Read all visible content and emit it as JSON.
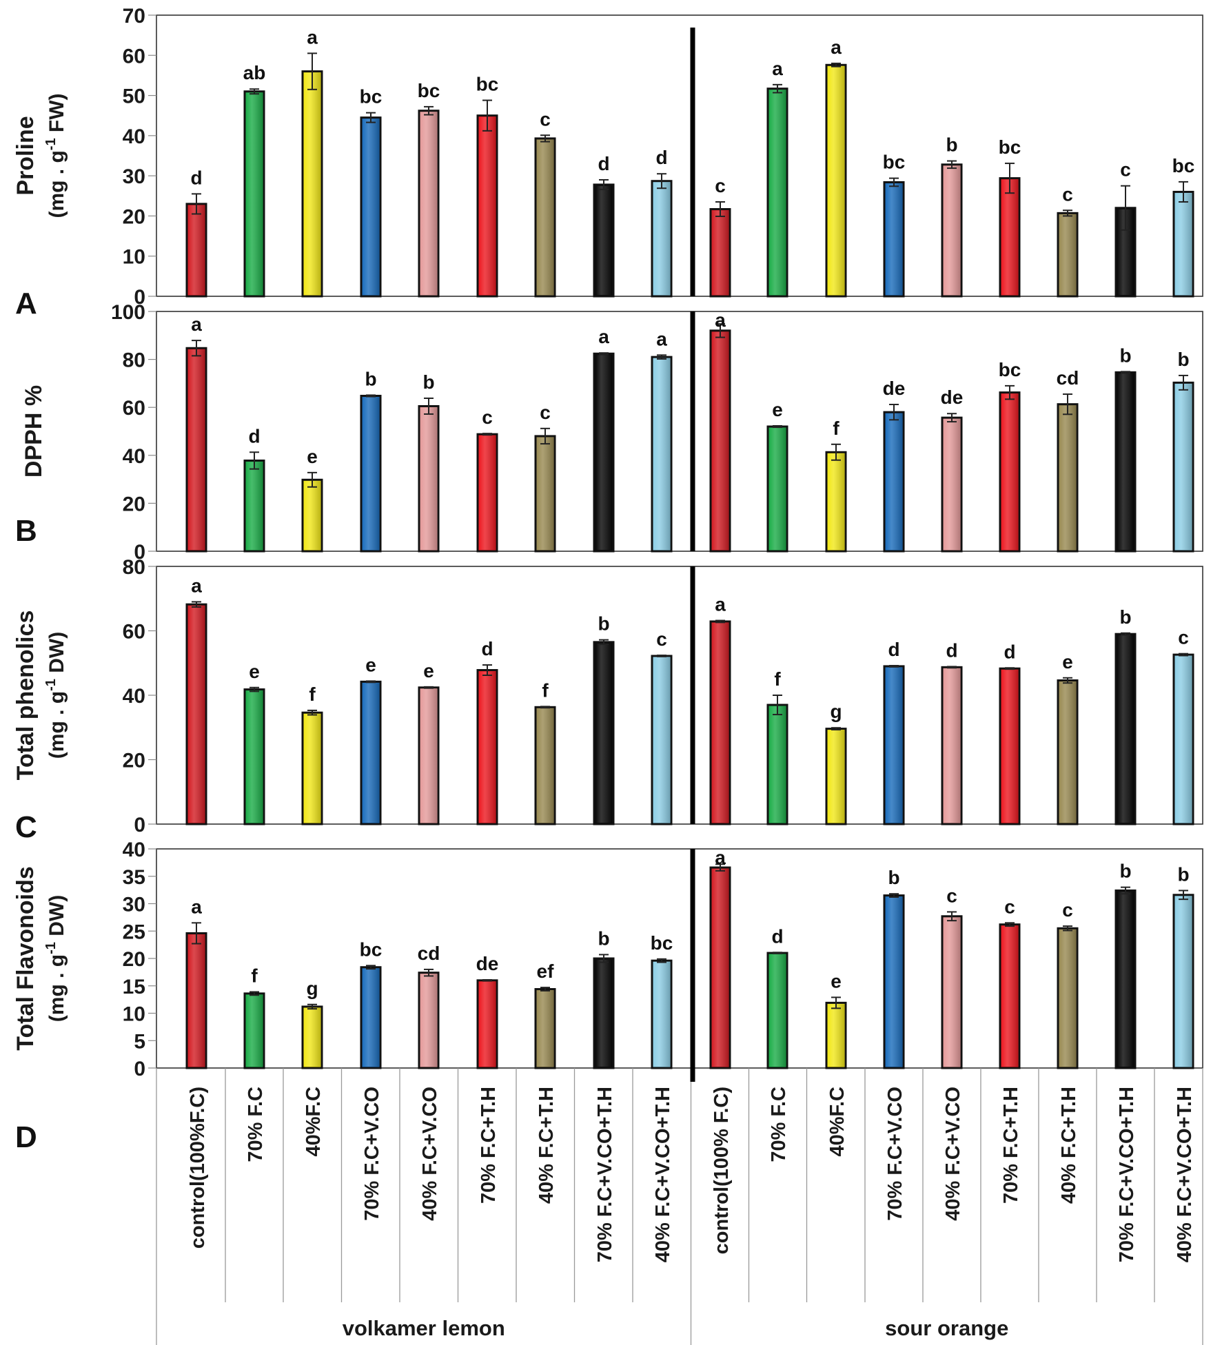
{
  "figure": {
    "groups": [
      "volkamer lemon",
      "sour orange"
    ],
    "categories": [
      "control(100%F.C)",
      "70% F.C",
      "40%F.C",
      "70% F.C+V.CO",
      "40% F.C+V.CO",
      "70% F.C+T.H",
      "40% F.C+T.H",
      "70% F.C+V.CO+T.H",
      "40% F.C+V.CO+T.H",
      "control(100% F.C)",
      "70% F.C",
      "40%F.C",
      "70% F.C+V.CO",
      "40% F.C+V.CO",
      "70% F.C+T.H",
      "40% F.C+T.H",
      "70% F.C+V.CO+T.H",
      "40% F.C+V.CO+T.H"
    ],
    "bar_colors": [
      "#d42027",
      "#1fae4b",
      "#f2e81c",
      "#1e6fbd",
      "#e59c9c",
      "#ed1c24",
      "#9b8c55",
      "#0a0a0a",
      "#8fcfe6"
    ]
  },
  "chart_data": [
    {
      "type": "bar",
      "panel_letter": "A",
      "ylabel_line1": "Proline",
      "ylabel_line2_prefix": "(mg . g",
      "ylabel_sup": "-1",
      "ylabel_line2_suffix": " FW)",
      "ylim": [
        0,
        70
      ],
      "yticks": [
        0,
        10,
        20,
        30,
        40,
        50,
        60,
        70
      ],
      "values": [
        23,
        51,
        56,
        44.5,
        46.2,
        45,
        39.3,
        27.8,
        28.7,
        21.7,
        51.7,
        57.6,
        28.4,
        32.8,
        29.4,
        20.7,
        22,
        26
      ],
      "errors": [
        2.5,
        0.6,
        4.5,
        1.2,
        1,
        3.8,
        0.8,
        1.2,
        1.8,
        1.8,
        1,
        0.4,
        1,
        0.9,
        3.7,
        0.7,
        5.5,
        2.5
      ],
      "letters": [
        "d",
        "ab",
        "a",
        "bc",
        "bc",
        "bc",
        "c",
        "d",
        "d",
        "c",
        "a",
        "a",
        "bc",
        "b",
        "bc",
        "c",
        "c",
        "bc"
      ]
    },
    {
      "type": "bar",
      "panel_letter": "B",
      "ylabel_line1": "DPPH %",
      "ylim": [
        0,
        100
      ],
      "yticks": [
        0,
        20,
        40,
        60,
        80,
        100
      ],
      "values": [
        84.7,
        37.8,
        29.8,
        64.8,
        60.5,
        48.8,
        48,
        82.4,
        81,
        92,
        52,
        41.3,
        58,
        55.7,
        66.2,
        61.3,
        74.6,
        70.3
      ],
      "errors": [
        3.2,
        3.5,
        3,
        0.3,
        3.3,
        0.3,
        3.2,
        0.3,
        0.8,
        2.8,
        0.3,
        3.3,
        3.2,
        1.7,
        2.8,
        4.2,
        0.3,
        3
      ],
      "letters": [
        "a",
        "d",
        "e",
        "b",
        "b",
        "c",
        "c",
        "a",
        "a",
        "a",
        "e",
        "f",
        "de",
        "de",
        "bc",
        "cd",
        "b",
        "b"
      ]
    },
    {
      "type": "bar",
      "panel_letter": "C",
      "ylabel_line1": "Total phenolics",
      "ylabel_line2_prefix": "(mg . g",
      "ylabel_sup": "-1",
      "ylabel_line2_suffix": " DW)",
      "ylim": [
        0,
        80
      ],
      "yticks": [
        0,
        20,
        40,
        60,
        80
      ],
      "values": [
        68.2,
        41.8,
        34.6,
        44.2,
        42.4,
        47.8,
        36.3,
        56.5,
        52.2,
        62.9,
        37,
        29.6,
        49,
        48.7,
        48.3,
        44.6,
        59,
        52.6
      ],
      "errors": [
        0.8,
        0.6,
        0.7,
        0.2,
        0.2,
        1.6,
        0.2,
        0.7,
        0.2,
        0.3,
        3,
        0.3,
        0.2,
        0.2,
        0.2,
        0.8,
        0.3,
        0.3
      ],
      "letters": [
        "a",
        "e",
        "f",
        "e",
        "e",
        "d",
        "f",
        "b",
        "c",
        "a",
        "f",
        "g",
        "d",
        "d",
        "d",
        "e",
        "b",
        "c"
      ]
    },
    {
      "type": "bar",
      "panel_letter": "D",
      "ylabel_line1": "Total Flavonoids",
      "ylabel_line2_prefix": "(mg . g",
      "ylabel_sup": "-1",
      "ylabel_line2_suffix": " DW)",
      "ylim": [
        0,
        40
      ],
      "yticks": [
        0,
        5,
        10,
        15,
        20,
        25,
        30,
        35,
        40
      ],
      "values": [
        24.6,
        13.6,
        11.2,
        18.4,
        17.4,
        16,
        14.4,
        20,
        19.6,
        36.6,
        21,
        11.9,
        31.5,
        27.7,
        26.2,
        25.5,
        32.4,
        31.6
      ],
      "errors": [
        1.9,
        0.3,
        0.4,
        0.3,
        0.6,
        0.1,
        0.3,
        0.7,
        0.3,
        0.6,
        0.1,
        1,
        0.3,
        0.8,
        0.3,
        0.4,
        0.6,
        0.8
      ],
      "letters": [
        "a",
        "f",
        "g",
        "bc",
        "cd",
        "de",
        "ef",
        "b",
        "bc",
        "a",
        "d",
        "e",
        "b",
        "c",
        "c",
        "c",
        "b",
        "b"
      ]
    }
  ]
}
